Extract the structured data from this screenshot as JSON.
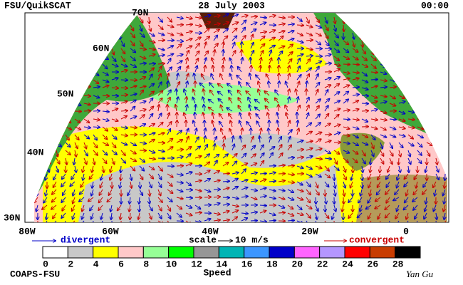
{
  "header": {
    "left": "FSU/QuikSCAT",
    "center": "28 July 2003",
    "right": "00:00"
  },
  "map": {
    "lat_labels": [
      "70N",
      "60N",
      "50N",
      "40N",
      "30N"
    ],
    "lon_labels": [
      "80W",
      "60W",
      "40W",
      "20W",
      "0"
    ]
  },
  "legend": {
    "divergent": "divergent",
    "scale": "scale",
    "scale_value": "10 m/s",
    "convergent": "convergent"
  },
  "colorbar": {
    "title": "Speed",
    "ticks": [
      0,
      2,
      4,
      6,
      8,
      10,
      12,
      14,
      16,
      18,
      20,
      22,
      24,
      26,
      28
    ],
    "colors": [
      "#ffffff",
      "#c8c8c8",
      "#ffff00",
      "#ffc8c8",
      "#96ff96",
      "#00ff00",
      "#969696",
      "#00b4b4",
      "#3c96ff",
      "#0000c8",
      "#ff64ff",
      "#b496ff",
      "#ff0000",
      "#c83c00",
      "#000000"
    ]
  },
  "footer": {
    "left": "COAPS-FSU",
    "signature": "Yan Gu"
  }
}
